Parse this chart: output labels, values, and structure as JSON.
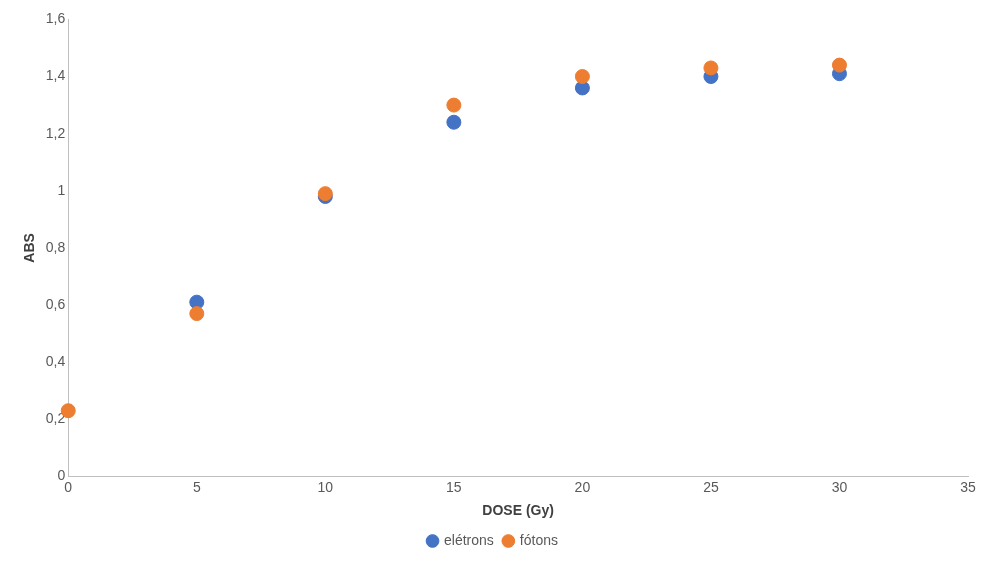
{
  "chart_data": {
    "type": "scatter",
    "xlabel": "DOSE (Gy)",
    "ylabel": "ABS",
    "x": [
      0,
      5,
      10,
      15,
      20,
      25,
      30
    ],
    "series": [
      {
        "name": "elétrons",
        "color": "#4472c4",
        "values": [
          null,
          0.61,
          0.98,
          1.24,
          1.36,
          1.4,
          1.41
        ]
      },
      {
        "name": "fótons",
        "color": "#ed7d31",
        "values": [
          0.23,
          0.57,
          0.99,
          1.3,
          1.4,
          1.43,
          1.44
        ]
      }
    ],
    "xlim": [
      0,
      35
    ],
    "xticks": [
      0,
      5,
      10,
      15,
      20,
      25,
      30,
      35
    ],
    "ylim": [
      0,
      1.6
    ],
    "yticks": [
      {
        "value": 0,
        "label": "0"
      },
      {
        "value": 0.2,
        "label": "0,2"
      },
      {
        "value": 0.4,
        "label": "0,4"
      },
      {
        "value": 0.6,
        "label": "0,6"
      },
      {
        "value": 0.8,
        "label": "0,8"
      },
      {
        "value": 1,
        "label": "1"
      },
      {
        "value": 1.2,
        "label": "1,2"
      },
      {
        "value": 1.4,
        "label": "1,4"
      },
      {
        "value": 1.6,
        "label": "1,6"
      }
    ],
    "grid": false,
    "legend": "bottom",
    "marker": "circle"
  }
}
